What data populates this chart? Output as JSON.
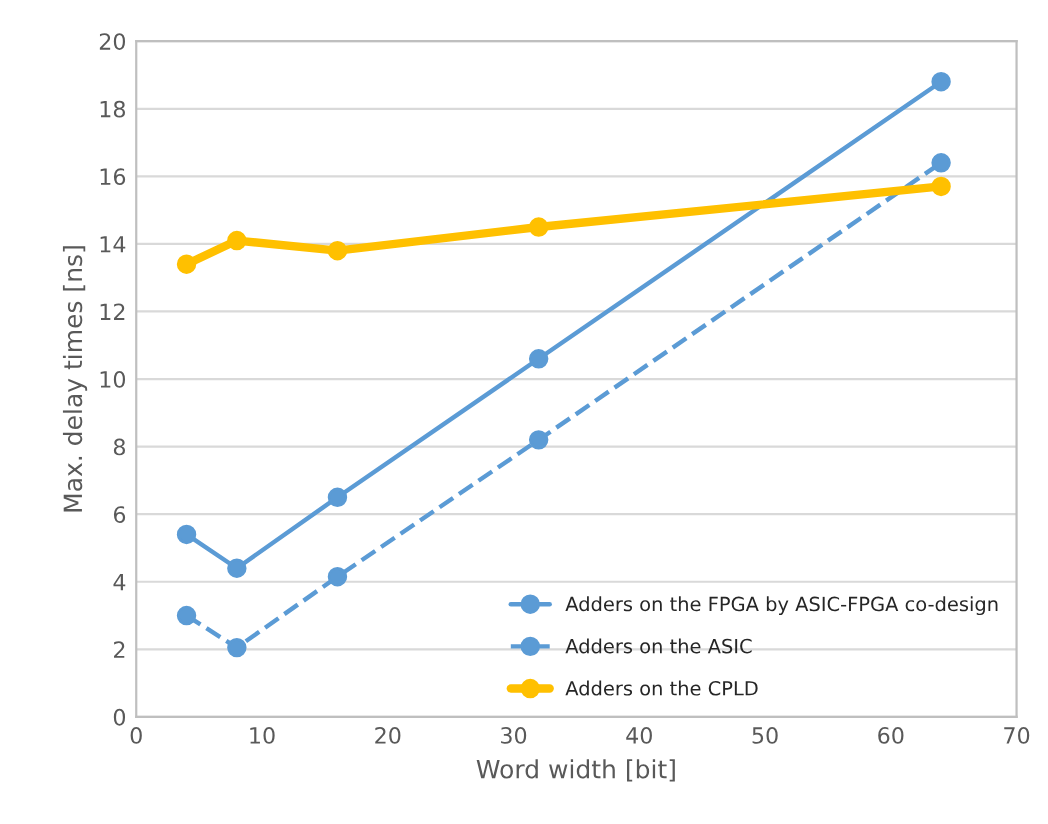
{
  "chart_data": {
    "type": "line",
    "xlabel": "Word width [bit]",
    "ylabel": "Max. delay times [ns]",
    "x": [
      4,
      8,
      16,
      32,
      64
    ],
    "series": [
      {
        "name": "Adders on the FPGA by ASIC-FPGA co-design",
        "color": "#5b9bd5",
        "values": [
          5.4,
          4.4,
          6.5,
          10.6,
          18.8
        ],
        "line_style": "solid"
      },
      {
        "name": "Adders on the ASIC",
        "color": "#5b9bd5",
        "values": [
          3.0,
          2.05,
          4.15,
          8.2,
          16.4
        ],
        "line_style": "dashed"
      },
      {
        "name": "Adders on the CPLD",
        "color": "#ffc000",
        "values": [
          13.4,
          14.1,
          13.8,
          14.5,
          15.7
        ],
        "line_style": "solid"
      }
    ],
    "xlim": [
      0,
      70
    ],
    "xticks": [
      0,
      10,
      20,
      30,
      40,
      50,
      60,
      70
    ],
    "ylim": [
      0,
      20
    ],
    "yticks": [
      0,
      2,
      4,
      6,
      8,
      10,
      12,
      14,
      16,
      18,
      20
    ],
    "grid": "y",
    "legend": "lower right",
    "marker": "circle"
  }
}
